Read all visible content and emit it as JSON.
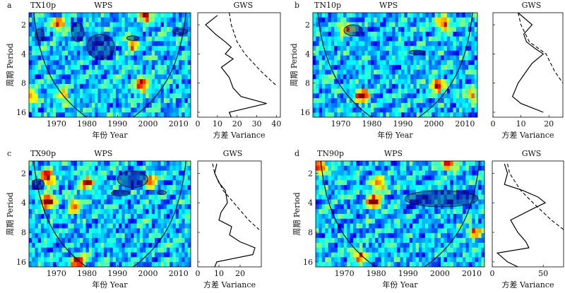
{
  "chart_data": [
    {
      "panel_letter": "a",
      "index_label": "TX10p",
      "type": "heatmap",
      "wps": {
        "title": "WPS",
        "xlabel": "年份 Year",
        "ylabel": "周期 Period",
        "xlim": [
          1961,
          2014
        ],
        "ylim": [
          1.5,
          18
        ],
        "y_scale": "log2",
        "x_ticks": [
          1970,
          1980,
          1990,
          2000,
          2010
        ],
        "y_ticks": [
          2,
          4,
          8,
          16
        ],
        "significant_regions": [
          {
            "year_range": [
              1963,
              1966
            ],
            "period_range": [
              2.2,
              2.9
            ]
          },
          {
            "year_range": [
              1975,
              1979
            ],
            "period_range": [
              1.9,
              3.0
            ]
          },
          {
            "year_range": [
              1980,
              1989
            ],
            "period_range": [
              2.5,
              4.5
            ]
          },
          {
            "year_range": [
              1993,
              1997
            ],
            "period_range": [
              2.6,
              2.9
            ]
          },
          {
            "year_range": [
              2008,
              2013
            ],
            "period_range": [
              2.2,
              2.5
            ]
          }
        ],
        "hotspots": [
          {
            "year": 1999,
            "period": 1.6,
            "level": 1.0
          },
          {
            "year": 1971,
            "period": 2.0,
            "level": 0.75
          },
          {
            "year": 1998,
            "period": 8.5,
            "level": 0.95
          },
          {
            "year": 1972,
            "period": 11,
            "level": 0.7
          },
          {
            "year": 1962,
            "period": 11,
            "level": 0.7
          },
          {
            "year": 1995,
            "period": 3.2,
            "level": 0.7
          }
        ]
      },
      "gws": {
        "title": "GWS",
        "xlabel": "方差 Variance",
        "xlim": [
          0,
          42
        ],
        "x_ticks": [
          0,
          10,
          20,
          30,
          40
        ],
        "variance": [
          {
            "period": 1.6,
            "value": 10
          },
          {
            "period": 2,
            "value": 4
          },
          {
            "period": 2.5,
            "value": 9
          },
          {
            "period": 3,
            "value": 14
          },
          {
            "period": 3.4,
            "value": 17
          },
          {
            "period": 4,
            "value": 14
          },
          {
            "period": 4.5,
            "value": 18
          },
          {
            "period": 5.5,
            "value": 12
          },
          {
            "period": 7,
            "value": 16
          },
          {
            "period": 9,
            "value": 18
          },
          {
            "period": 11,
            "value": 22
          },
          {
            "period": 13,
            "value": 35
          },
          {
            "period": 16,
            "value": 16
          },
          {
            "period": 18,
            "value": 17
          }
        ],
        "significance": [
          {
            "period": 1.5,
            "value": 16
          },
          {
            "period": 2,
            "value": 17
          },
          {
            "period": 3,
            "value": 20
          },
          {
            "period": 4,
            "value": 24
          },
          {
            "period": 6,
            "value": 32
          },
          {
            "period": 8.5,
            "value": 40
          }
        ]
      }
    },
    {
      "panel_letter": "b",
      "index_label": "TN10p",
      "type": "heatmap",
      "wps": {
        "title": "WPS",
        "xlabel": "年份 Year",
        "ylabel": "周期 Period",
        "xlim": [
          1961,
          2014
        ],
        "ylim": [
          1.5,
          18
        ],
        "y_scale": "log2",
        "x_ticks": [
          1970,
          1980,
          1990,
          2000,
          2010
        ],
        "y_ticks": [
          2,
          4,
          8,
          16
        ],
        "significant_regions": [
          {
            "year_range": [
              1971,
              1977
            ],
            "period_range": [
              2.0,
              2.6
            ]
          },
          {
            "year_range": [
              1992,
              1997
            ],
            "period_range": [
              3.7,
              4.0
            ]
          }
        ],
        "hotspots": [
          {
            "year": 1977,
            "period": 11,
            "level": 1.0
          },
          {
            "year": 2001,
            "period": 8.5,
            "level": 0.9
          },
          {
            "year": 2003,
            "period": 2.0,
            "level": 0.85
          },
          {
            "year": 1972,
            "period": 2.2,
            "level": 0.75
          },
          {
            "year": 2012,
            "period": 11,
            "level": 0.7
          }
        ]
      },
      "gws": {
        "title": "GWS",
        "xlabel": "方差 Variance",
        "xlim": [
          0,
          25
        ],
        "x_ticks": [
          0,
          10,
          20
        ],
        "variance": [
          {
            "period": 1.5,
            "value": 9
          },
          {
            "period": 2,
            "value": 14
          },
          {
            "period": 2.5,
            "value": 11
          },
          {
            "period": 3,
            "value": 12
          },
          {
            "period": 3.5,
            "value": 15
          },
          {
            "period": 4,
            "value": 18
          },
          {
            "period": 5,
            "value": 14
          },
          {
            "period": 6,
            "value": 12
          },
          {
            "period": 8,
            "value": 9
          },
          {
            "period": 11,
            "value": 7
          },
          {
            "period": 13,
            "value": 10
          },
          {
            "period": 16,
            "value": 18
          }
        ],
        "significance": [
          {
            "period": 1.5,
            "value": 9
          },
          {
            "period": 2,
            "value": 10
          },
          {
            "period": 3,
            "value": 13
          },
          {
            "period": 4,
            "value": 19
          },
          {
            "period": 6,
            "value": 22
          },
          {
            "period": 8,
            "value": 25
          }
        ]
      }
    },
    {
      "panel_letter": "c",
      "index_label": "TX90p",
      "type": "heatmap",
      "wps": {
        "title": "WPS",
        "xlabel": "年份 Year",
        "ylabel": "周期 Period",
        "xlim": [
          1961,
          2014
        ],
        "ylim": [
          1.5,
          18
        ],
        "y_scale": "log2",
        "x_ticks": [
          1970,
          1980,
          1990,
          2000,
          2010
        ],
        "y_ticks": [
          2,
          4,
          8,
          16
        ],
        "significant_regions": [
          {
            "year_range": [
              1962,
              1966
            ],
            "period_range": [
              2.3,
              2.9
            ]
          },
          {
            "year_range": [
              1990,
              2000
            ],
            "period_range": [
              1.9,
              2.8
            ]
          },
          {
            "year_range": [
              1988,
              1994
            ],
            "period_range": [
              3.0,
              3.4
            ]
          },
          {
            "year_range": [
              2003,
              2006
            ],
            "period_range": [
              3.0,
              3.3
            ]
          }
        ],
        "hotspots": [
          {
            "year": 1967,
            "period": 2.2,
            "level": 1.0
          },
          {
            "year": 1967,
            "period": 3.9,
            "level": 1.0
          },
          {
            "year": 1977,
            "period": 16,
            "level": 0.95
          },
          {
            "year": 1980,
            "period": 2.5,
            "level": 0.8
          },
          {
            "year": 1976,
            "period": 4.2,
            "level": 0.75
          },
          {
            "year": 2001,
            "period": 2.4,
            "level": 0.75
          }
        ]
      },
      "gws": {
        "title": "GWS",
        "xlabel": "方差 Variance",
        "xlim": [
          0,
          30
        ],
        "x_ticks": [
          0,
          10,
          20
        ],
        "variance": [
          {
            "period": 1.6,
            "value": 9
          },
          {
            "period": 2,
            "value": 8
          },
          {
            "period": 2.5,
            "value": 10
          },
          {
            "period": 3,
            "value": 13
          },
          {
            "period": 4,
            "value": 14
          },
          {
            "period": 5,
            "value": 11
          },
          {
            "period": 6,
            "value": 10
          },
          {
            "period": 7,
            "value": 16
          },
          {
            "period": 8.5,
            "value": 15
          },
          {
            "period": 10,
            "value": 20
          },
          {
            "period": 11.5,
            "value": 27
          },
          {
            "period": 13.5,
            "value": 26
          },
          {
            "period": 16,
            "value": 9
          },
          {
            "period": 18,
            "value": 8
          }
        ],
        "significance": [
          {
            "period": 1.6,
            "value": 7
          },
          {
            "period": 2,
            "value": 8
          },
          {
            "period": 3,
            "value": 12
          },
          {
            "period": 4,
            "value": 17
          },
          {
            "period": 6,
            "value": 24
          },
          {
            "period": 7.5,
            "value": 29
          }
        ]
      }
    },
    {
      "panel_letter": "d",
      "index_label": "TN90p",
      "type": "heatmap",
      "wps": {
        "title": "WPS",
        "xlabel": "年份 Year",
        "ylabel": "周期 Period",
        "xlim": [
          1961,
          2014
        ],
        "ylim": [
          1.5,
          18
        ],
        "y_scale": "log2",
        "x_ticks": [
          1970,
          1980,
          1990,
          2000,
          2010
        ],
        "y_ticks": [
          2,
          4,
          8,
          16
        ],
        "significant_regions": [
          {
            "year_range": [
              1989,
              2012
            ],
            "period_range": [
              3.0,
              4.4
            ]
          }
        ],
        "hotspots": [
          {
            "year": 1962,
            "period": 1.7,
            "level": 1.0
          },
          {
            "year": 2003,
            "period": 1.6,
            "level": 0.95
          },
          {
            "year": 1979,
            "period": 3.9,
            "level": 0.95
          },
          {
            "year": 1975,
            "period": 14,
            "level": 0.8
          },
          {
            "year": 1981,
            "period": 2.6,
            "level": 0.8
          },
          {
            "year": 2011,
            "period": 8,
            "level": 0.7
          }
        ]
      },
      "gws": {
        "title": "GWS",
        "xlabel": "方差 Variance",
        "xlim": [
          0,
          70
        ],
        "x_ticks": [
          0,
          50
        ],
        "variance": [
          {
            "period": 1.6,
            "value": 12
          },
          {
            "period": 2,
            "value": 15
          },
          {
            "period": 2.6,
            "value": 12
          },
          {
            "period": 3,
            "value": 30
          },
          {
            "period": 3.5,
            "value": 45
          },
          {
            "period": 4,
            "value": 52
          },
          {
            "period": 4.6,
            "value": 40
          },
          {
            "period": 6,
            "value": 18
          },
          {
            "period": 8,
            "value": 25
          },
          {
            "period": 10,
            "value": 33
          },
          {
            "period": 11.5,
            "value": 36
          },
          {
            "period": 13,
            "value": 5
          },
          {
            "period": 16,
            "value": 15
          },
          {
            "period": 18,
            "value": 25
          }
        ],
        "significance": [
          {
            "period": 1.6,
            "value": 15
          },
          {
            "period": 2,
            "value": 17
          },
          {
            "period": 3,
            "value": 28
          },
          {
            "period": 4,
            "value": 40
          },
          {
            "period": 6,
            "value": 58
          },
          {
            "period": 7.5,
            "value": 70
          }
        ]
      }
    }
  ]
}
